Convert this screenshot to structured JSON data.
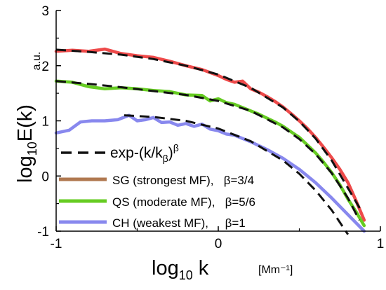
{
  "chart_data": {
    "type": "line",
    "xlim": [
      -1,
      1
    ],
    "ylim": [
      -1,
      3
    ],
    "x_ticks": [
      "-1",
      "0",
      "1"
    ],
    "y_ticks": [
      "-1",
      "0",
      "1",
      "2",
      "3"
    ],
    "xlabel_main": "log",
    "xlabel_sub": "10",
    "xlabel_var": " k",
    "xlabel_unit": "[Mm⁻¹]",
    "ylabel_main": "log",
    "ylabel_sub": "10",
    "ylabel_var": "E(k)",
    "ylabel_unit": "a.u.",
    "grid": false,
    "legend_placement": "bottom-left",
    "fit_legend": "exp-(k/k",
    "fit_legend_sub": "β",
    "fit_legend_tail": ")",
    "fit_legend_sup": "β",
    "series": [
      {
        "name": "SG (strongest MF),   β=3/4",
        "color": "#ee4a4a",
        "legend_color": "#b07850",
        "x": [
          -1.0,
          -0.9,
          -0.8,
          -0.7,
          -0.6,
          -0.5,
          -0.4,
          -0.3,
          -0.2,
          -0.1,
          0.0,
          0.05,
          0.1,
          0.15,
          0.2,
          0.25,
          0.3,
          0.35,
          0.4,
          0.45,
          0.5,
          0.55,
          0.6,
          0.65,
          0.7,
          0.75,
          0.8,
          0.85,
          0.9
        ],
        "y": [
          2.26,
          2.28,
          2.26,
          2.3,
          2.22,
          2.18,
          2.15,
          2.08,
          2.0,
          1.93,
          1.82,
          1.75,
          1.7,
          1.72,
          1.58,
          1.52,
          1.44,
          1.35,
          1.25,
          1.13,
          1.0,
          0.86,
          0.7,
          0.52,
          0.33,
          0.12,
          -0.12,
          -0.45,
          -0.8
        ]
      },
      {
        "name": "QS (moderate MF),   β=5/6",
        "color": "#66cc22",
        "legend_color": "#66cc22",
        "x": [
          -1.0,
          -0.9,
          -0.8,
          -0.7,
          -0.6,
          -0.5,
          -0.4,
          -0.3,
          -0.2,
          -0.1,
          -0.05,
          0.0,
          0.05,
          0.1,
          0.15,
          0.2,
          0.25,
          0.3,
          0.35,
          0.4,
          0.45,
          0.5,
          0.55,
          0.6,
          0.65,
          0.7,
          0.75,
          0.8,
          0.85,
          0.9
        ],
        "y": [
          1.72,
          1.7,
          1.62,
          1.58,
          1.6,
          1.58,
          1.55,
          1.53,
          1.47,
          1.46,
          1.36,
          1.4,
          1.33,
          1.3,
          1.24,
          1.18,
          1.12,
          1.05,
          0.98,
          0.9,
          0.8,
          0.7,
          0.56,
          0.42,
          0.25,
          0.06,
          -0.16,
          -0.42,
          -0.65,
          -0.9
        ]
      },
      {
        "name": "CH (weakest MF),     β=1",
        "color": "#8888ee",
        "legend_color": "#8888ee",
        "x": [
          -1.0,
          -0.92,
          -0.85,
          -0.78,
          -0.7,
          -0.62,
          -0.55,
          -0.5,
          -0.45,
          -0.4,
          -0.35,
          -0.3,
          -0.25,
          -0.2,
          -0.15,
          -0.1,
          -0.05,
          0.0,
          0.05,
          0.1,
          0.2,
          0.3,
          0.4,
          0.5,
          0.6,
          0.7,
          0.8,
          0.9
        ],
        "y": [
          0.78,
          0.83,
          0.98,
          1.0,
          1.0,
          1.02,
          1.1,
          1.0,
          1.02,
          1.06,
          0.97,
          0.98,
          0.92,
          0.95,
          0.9,
          0.94,
          0.85,
          0.82,
          0.76,
          0.74,
          0.62,
          0.48,
          0.32,
          0.12,
          -0.12,
          -0.4,
          -0.7,
          -1.0
        ]
      }
    ],
    "fits": [
      {
        "x": [
          -1.0,
          -0.8,
          -0.6,
          -0.4,
          -0.2,
          0.0,
          0.2,
          0.4,
          0.5,
          0.6,
          0.7,
          0.8,
          0.88
        ],
        "y": [
          2.29,
          2.25,
          2.2,
          2.12,
          2.0,
          1.84,
          1.6,
          1.24,
          0.99,
          0.68,
          0.28,
          -0.22,
          -0.62
        ]
      },
      {
        "x": [
          -1.0,
          -0.8,
          -0.6,
          -0.4,
          -0.2,
          0.0,
          0.2,
          0.4,
          0.5,
          0.6,
          0.7,
          0.8,
          0.87
        ],
        "y": [
          1.72,
          1.67,
          1.61,
          1.54,
          1.47,
          1.36,
          1.18,
          0.88,
          0.67,
          0.4,
          0.05,
          -0.4,
          -0.8
        ]
      },
      {
        "x": [
          -0.58,
          -0.4,
          -0.2,
          0.0,
          0.2,
          0.4,
          0.5,
          0.6,
          0.7,
          0.8
        ],
        "y": [
          1.1,
          1.07,
          1.0,
          0.86,
          0.63,
          0.28,
          0.04,
          -0.26,
          -0.62,
          -1.06
        ]
      }
    ]
  }
}
